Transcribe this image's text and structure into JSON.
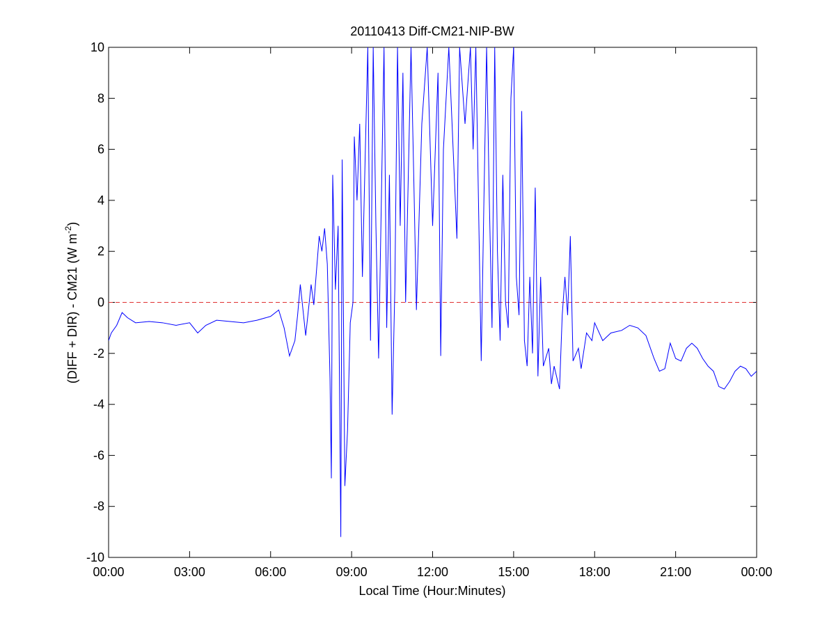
{
  "chart_data": {
    "type": "line",
    "title": "20110413 Diff-CM21-NIP-BW",
    "xlabel": "Local Time (Hour:Minutes)",
    "ylabel": {
      "text": "(DIFF + DIR) - CM21 (W m",
      "superscript": "-2",
      "suffix": ")"
    },
    "xlim": [
      0,
      24
    ],
    "xticks": [
      {
        "value": 0,
        "label": "00:00"
      },
      {
        "value": 3,
        "label": "03:00"
      },
      {
        "value": 6,
        "label": "06:00"
      },
      {
        "value": 9,
        "label": "09:00"
      },
      {
        "value": 12,
        "label": "12:00"
      },
      {
        "value": 15,
        "label": "15:00"
      },
      {
        "value": 18,
        "label": "18:00"
      },
      {
        "value": 21,
        "label": "21:00"
      },
      {
        "value": 24,
        "label": "00:00"
      }
    ],
    "ylim": [
      -10,
      10
    ],
    "yticks": [
      -10,
      -8,
      -6,
      -4,
      -2,
      0,
      2,
      4,
      6,
      8,
      10
    ],
    "grid": false,
    "reference_line": {
      "value": 0,
      "color": "#e03030"
    },
    "series": [
      {
        "color": "#0000ff",
        "x": [
          0.0,
          0.1,
          0.3,
          0.5,
          0.7,
          1.0,
          1.5,
          2.0,
          2.5,
          3.0,
          3.3,
          3.6,
          4.0,
          4.5,
          5.0,
          5.5,
          6.0,
          6.3,
          6.5,
          6.7,
          6.9,
          7.0,
          7.1,
          7.2,
          7.3,
          7.5,
          7.6,
          7.8,
          7.9,
          8.0,
          8.1,
          8.2,
          8.25,
          8.3,
          8.4,
          8.5,
          8.6,
          8.65,
          8.75,
          8.85,
          8.95,
          9.05,
          9.1,
          9.2,
          9.3,
          9.4,
          9.5,
          9.6,
          9.7,
          9.8,
          9.9,
          10.0,
          10.2,
          10.3,
          10.4,
          10.5,
          10.6,
          10.7,
          10.8,
          10.9,
          11.0,
          11.2,
          11.3,
          11.4,
          11.6,
          11.8,
          12.0,
          12.2,
          12.3,
          12.4,
          12.6,
          12.8,
          12.9,
          13.0,
          13.2,
          13.4,
          13.5,
          13.6,
          13.8,
          13.9,
          14.0,
          14.1,
          14.2,
          14.3,
          14.4,
          14.5,
          14.6,
          14.7,
          14.8,
          14.9,
          15.0,
          15.1,
          15.2,
          15.3,
          15.4,
          15.5,
          15.6,
          15.7,
          15.8,
          15.9,
          16.0,
          16.1,
          16.3,
          16.4,
          16.5,
          16.7,
          16.8,
          16.9,
          17.0,
          17.1,
          17.2,
          17.4,
          17.5,
          17.7,
          17.9,
          18.0,
          18.3,
          18.6,
          19.0,
          19.3,
          19.6,
          19.9,
          20.2,
          20.4,
          20.6,
          20.8,
          21.0,
          21.2,
          21.4,
          21.6,
          21.8,
          22.0,
          22.2,
          22.4,
          22.6,
          22.8,
          23.0,
          23.2,
          23.4,
          23.6,
          23.8,
          24.0
        ],
        "values": [
          -1.5,
          -1.2,
          -0.9,
          -0.4,
          -0.6,
          -0.8,
          -0.75,
          -0.8,
          -0.9,
          -0.8,
          -1.2,
          -0.9,
          -0.7,
          -0.75,
          -0.8,
          -0.7,
          -0.55,
          -0.3,
          -1.0,
          -2.1,
          -1.5,
          -0.5,
          0.7,
          -0.3,
          -1.3,
          0.7,
          -0.1,
          2.6,
          2.0,
          2.9,
          1.5,
          -3.0,
          -6.9,
          5.0,
          0.5,
          3.0,
          -9.2,
          5.6,
          -7.2,
          -5.0,
          -0.8,
          0.0,
          6.5,
          4.0,
          7.0,
          1.0,
          5.6,
          10,
          -1.5,
          10,
          3,
          -2.2,
          10,
          -1.0,
          5.0,
          -4.4,
          0.5,
          10,
          3,
          9,
          0,
          10,
          5,
          -0.3,
          7,
          10,
          3,
          9,
          -2.1,
          6,
          10,
          5,
          2.5,
          10,
          7,
          10,
          6,
          10,
          -2.3,
          4,
          10,
          4,
          -1,
          10,
          2,
          -1.5,
          5,
          0,
          -1,
          8,
          10,
          1,
          -0.5,
          7.5,
          -1.5,
          -2.5,
          1,
          -2.0,
          4.5,
          -2.9,
          1.0,
          -2.5,
          -1.8,
          -3.2,
          -2.5,
          -3.4,
          -0.5,
          1.0,
          -0.5,
          2.6,
          -2.3,
          -1.8,
          -2.6,
          -1.2,
          -1.5,
          -0.8,
          -1.5,
          -1.2,
          -1.1,
          -0.9,
          -1.0,
          -1.3,
          -2.2,
          -2.7,
          -2.6,
          -1.6,
          -2.2,
          -2.3,
          -1.8,
          -1.6,
          -1.8,
          -2.2,
          -2.5,
          -2.7,
          -3.3,
          -3.4,
          -3.1,
          -2.7,
          -2.5,
          -2.6,
          -2.9,
          -2.7
        ]
      }
    ]
  }
}
